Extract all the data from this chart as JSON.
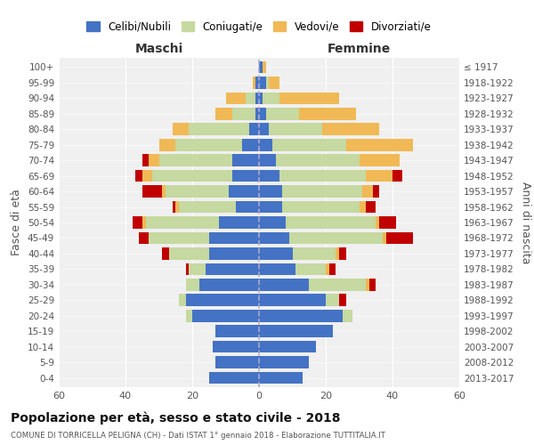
{
  "age_groups": [
    "0-4",
    "5-9",
    "10-14",
    "15-19",
    "20-24",
    "25-29",
    "30-34",
    "35-39",
    "40-44",
    "45-49",
    "50-54",
    "55-59",
    "60-64",
    "65-69",
    "70-74",
    "75-79",
    "80-84",
    "85-89",
    "90-94",
    "95-99",
    "100+"
  ],
  "birth_years": [
    "2013-2017",
    "2008-2012",
    "2003-2007",
    "1998-2002",
    "1993-1997",
    "1988-1992",
    "1983-1987",
    "1978-1982",
    "1973-1977",
    "1968-1972",
    "1963-1967",
    "1958-1962",
    "1953-1957",
    "1948-1952",
    "1943-1947",
    "1938-1942",
    "1933-1937",
    "1928-1932",
    "1923-1927",
    "1918-1922",
    "≤ 1917"
  ],
  "colors": {
    "celibi": "#4472C4",
    "coniugati": "#c5d9a0",
    "vedovi": "#f0b955",
    "divorziati": "#c00000"
  },
  "maschi": {
    "celibi": [
      15,
      13,
      14,
      13,
      20,
      22,
      18,
      16,
      15,
      15,
      12,
      7,
      9,
      8,
      8,
      5,
      3,
      1,
      1,
      1,
      0
    ],
    "coniugati": [
      0,
      0,
      0,
      0,
      2,
      2,
      4,
      5,
      12,
      18,
      22,
      17,
      19,
      24,
      22,
      20,
      18,
      7,
      3,
      0,
      0
    ],
    "vedovi": [
      0,
      0,
      0,
      0,
      0,
      0,
      0,
      0,
      0,
      0,
      1,
      1,
      1,
      3,
      3,
      5,
      5,
      5,
      6,
      1,
      0
    ],
    "divorziati": [
      0,
      0,
      0,
      0,
      0,
      0,
      0,
      1,
      2,
      3,
      3,
      1,
      6,
      2,
      2,
      0,
      0,
      0,
      0,
      0,
      0
    ]
  },
  "femmine": {
    "celibi": [
      13,
      15,
      17,
      22,
      25,
      20,
      15,
      11,
      10,
      9,
      8,
      7,
      7,
      6,
      5,
      4,
      3,
      2,
      1,
      2,
      1
    ],
    "coniugati": [
      0,
      0,
      0,
      0,
      3,
      4,
      17,
      9,
      13,
      28,
      27,
      23,
      24,
      26,
      25,
      22,
      16,
      10,
      5,
      1,
      0
    ],
    "vedovi": [
      0,
      0,
      0,
      0,
      0,
      0,
      1,
      1,
      1,
      1,
      1,
      2,
      3,
      8,
      12,
      20,
      17,
      17,
      18,
      3,
      1
    ],
    "divorziati": [
      0,
      0,
      0,
      0,
      0,
      2,
      2,
      2,
      2,
      8,
      5,
      3,
      2,
      3,
      0,
      0,
      0,
      0,
      0,
      0,
      0
    ]
  },
  "title": "Popolazione per età, sesso e stato civile - 2018",
  "subtitle": "COMUNE DI TORRICELLA PELIGNA (CH) - Dati ISTAT 1° gennaio 2018 - Elaborazione TUTTITALIA.IT",
  "xlabel_left": "Maschi",
  "xlabel_right": "Femmine",
  "ylabel_left": "Fasce di età",
  "ylabel_right": "Anni di nascita",
  "legend_labels": [
    "Celibi/Nubili",
    "Coniugati/e",
    "Vedovi/e",
    "Divorziati/e"
  ],
  "xlim": 60,
  "background_color": "#ffffff",
  "grid_color": "#cccccc"
}
